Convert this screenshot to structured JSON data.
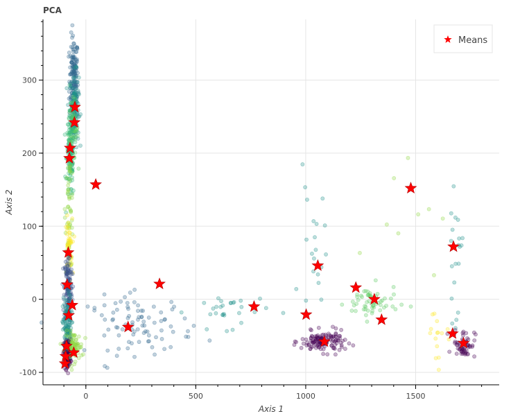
{
  "chart_data": {
    "type": "scatter",
    "title": "PCA",
    "xlabel": "Axis 1",
    "ylabel": "Axis 2",
    "xlim": [
      -195,
      1880
    ],
    "ylim": [
      -117,
      383
    ],
    "xticks": [
      0,
      500,
      1000,
      1500
    ],
    "yticks": [
      -100,
      0,
      100,
      200,
      300
    ],
    "grid": true,
    "legend": {
      "position": "top-right",
      "entries": [
        {
          "label": "Means",
          "marker": "star",
          "color": "#ff0000"
        }
      ]
    },
    "colormap": "viridis",
    "point_alpha": 0.25,
    "series": [
      {
        "name": "Means",
        "marker": "star",
        "color": "#ff0000",
        "points": [
          [
            -50,
            263
          ],
          [
            -52,
            242
          ],
          [
            -72,
            207
          ],
          [
            -75,
            193
          ],
          [
            45,
            157
          ],
          [
            -80,
            64
          ],
          [
            -85,
            20
          ],
          [
            -78,
            -22
          ],
          [
            -62,
            -8
          ],
          [
            -88,
            -64
          ],
          [
            -92,
            -78
          ],
          [
            -95,
            -88
          ],
          [
            -55,
            -73
          ],
          [
            192,
            -38
          ],
          [
            335,
            21
          ],
          [
            765,
            -10
          ],
          [
            1002,
            -21
          ],
          [
            1055,
            46
          ],
          [
            1085,
            -58
          ],
          [
            1228,
            16
          ],
          [
            1312,
            0
          ],
          [
            1345,
            -28
          ],
          [
            1478,
            152
          ],
          [
            1672,
            72
          ],
          [
            1668,
            -47
          ],
          [
            1718,
            -60
          ]
        ]
      }
    ]
  }
}
